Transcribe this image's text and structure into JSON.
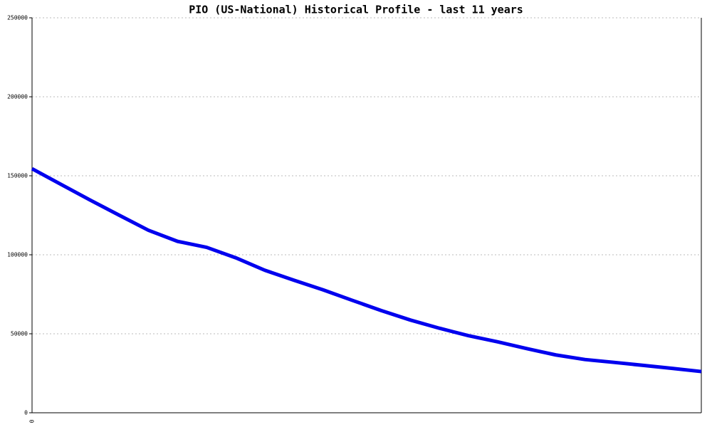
{
  "chart_data": {
    "type": "line",
    "title": "PIO (US-National) Historical Profile - last 11 years",
    "categories": [
      "0",
      null,
      null,
      null,
      null,
      null,
      null,
      null,
      null,
      null,
      null,
      null,
      null,
      null,
      null,
      null,
      null,
      null,
      null,
      null,
      null,
      null,
      null,
      null
    ],
    "series": [
      {
        "color": "#0000ee",
        "values": [
          154500,
          144500,
          134600,
          125000,
          115500,
          108500,
          104700,
          98100,
          90200,
          83900,
          77800,
          71200,
          64700,
          58700,
          53500,
          48800,
          44900,
          40600,
          36600,
          33700,
          31900,
          30000,
          28100,
          26100
        ]
      }
    ],
    "ylim": [
      0,
      250000
    ],
    "yticks": [
      0,
      50000,
      100000,
      150000,
      200000,
      250000
    ],
    "grid": true
  }
}
